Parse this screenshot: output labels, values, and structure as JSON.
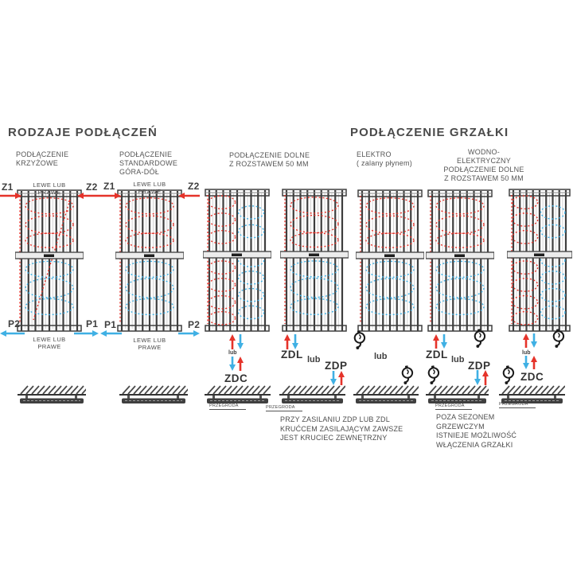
{
  "titles": {
    "left": "RODZAJE PODŁĄCZEŃ",
    "right": "PODŁĄCZENIE GRZAŁKI"
  },
  "subtitles": {
    "krzyzowe": "PODŁĄCZENIE\nKRZYŻOWE",
    "standardowe": "PODŁĄCZENIE\nSTANDARDOWE\nGÓRA-DÓŁ",
    "dolne": "PODŁĄCZENIE DOLNE\nZ ROZSTAWEM 50 MM",
    "elektro": "ELEKTRO\n( zalany płynem)",
    "wodno": "WODNO-ELEKTRYCZNY\nPODŁĄCZENIE DOLNE\nZ ROZSTAWEM 50 MM"
  },
  "labels": {
    "z1": "Z1",
    "z2": "Z2",
    "p1": "P1",
    "p2": "P2",
    "zdc": "ZDC",
    "zdl": "ZDL",
    "zdp": "ZDP",
    "lub": "lub",
    "lewe_lub_prawe": "LEWE LUB PRAWE",
    "przegroda": "PRZEGRODA"
  },
  "notes": {
    "zasilanie": "PRZY ZASILANIU ZDP LUB ZDL\nKRUĆCEM ZASILAJĄCYM ZAWSZE\nJEST KRUCIEC ZEWNĘTRZNY",
    "sezon": "POZA SEZONEM\nGRZEWCZYM\nISTNIEJE MOŻLIWOŚĆ\nWŁĄCZENIA GRZAŁKI"
  },
  "colors": {
    "supply_red": "#e5332a",
    "return_blue": "#3fb0e4",
    "line_dark": "#3e3e3e",
    "text": "#4d4d4d"
  }
}
